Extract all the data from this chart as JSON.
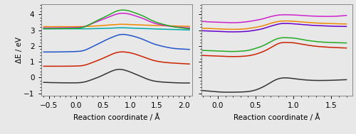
{
  "left": {
    "xlim": [
      -0.65,
      2.15
    ],
    "ylim": [
      -1.15,
      4.65
    ],
    "xticks": [
      -0.5,
      0.0,
      0.5,
      1.0,
      1.5,
      2.0
    ],
    "yticks": [
      -1,
      0,
      1,
      2,
      3,
      4
    ],
    "xlabel": "Reaction coordinate / Å",
    "ylabel": "ΔE / eV"
  },
  "right": {
    "xlim": [
      -0.22,
      1.78
    ],
    "ylim": [
      -1.15,
      4.65
    ],
    "xticks": [
      0.0,
      0.5,
      1.0,
      1.5
    ],
    "yticks": [
      -1,
      0,
      1,
      2,
      3,
      4
    ],
    "xlabel": "Reaction coordinate / Å",
    "ylabel": ""
  },
  "left_lines": {
    "black": {
      "x": [
        -0.6,
        -0.4,
        -0.2,
        0.0,
        0.15,
        0.3,
        0.45,
        0.6,
        0.72,
        0.82,
        0.95,
        1.1,
        1.25,
        1.4,
        1.6,
        1.8,
        2.0,
        2.1
      ],
      "y": [
        -0.3,
        -0.32,
        -0.33,
        -0.33,
        -0.28,
        -0.12,
        0.08,
        0.32,
        0.48,
        0.52,
        0.42,
        0.22,
        0.0,
        -0.18,
        -0.28,
        -0.32,
        -0.34,
        -0.34
      ]
    },
    "red": {
      "x": [
        -0.6,
        -0.4,
        -0.2,
        0.0,
        0.15,
        0.3,
        0.45,
        0.6,
        0.72,
        0.82,
        0.95,
        1.1,
        1.25,
        1.4,
        1.6,
        1.8,
        2.0,
        2.1
      ],
      "y": [
        0.72,
        0.72,
        0.72,
        0.73,
        0.78,
        0.95,
        1.15,
        1.38,
        1.55,
        1.62,
        1.6,
        1.48,
        1.3,
        1.12,
        0.98,
        0.92,
        0.88,
        0.86
      ]
    },
    "blue": {
      "x": [
        -0.6,
        -0.4,
        -0.2,
        0.0,
        0.15,
        0.3,
        0.45,
        0.6,
        0.72,
        0.82,
        0.95,
        1.1,
        1.25,
        1.4,
        1.6,
        1.8,
        2.0,
        2.1
      ],
      "y": [
        1.62,
        1.62,
        1.63,
        1.65,
        1.72,
        1.95,
        2.2,
        2.45,
        2.62,
        2.72,
        2.7,
        2.58,
        2.4,
        2.18,
        1.98,
        1.85,
        1.8,
        1.78
      ]
    },
    "cyan": {
      "x": [
        -0.6,
        -0.4,
        -0.2,
        0.0,
        0.15,
        0.3,
        0.45,
        0.6,
        0.72,
        0.82,
        0.95,
        1.1,
        1.25,
        1.4,
        1.6,
        1.8,
        2.0,
        2.1
      ],
      "y": [
        3.08,
        3.08,
        3.08,
        3.08,
        3.08,
        3.09,
        3.1,
        3.12,
        3.14,
        3.15,
        3.14,
        3.12,
        3.1,
        3.08,
        3.06,
        3.04,
        3.02,
        3.01
      ]
    },
    "orange": {
      "x": [
        -0.6,
        -0.4,
        -0.2,
        0.0,
        0.15,
        0.3,
        0.45,
        0.6,
        0.72,
        0.82,
        0.95,
        1.1,
        1.25,
        1.4,
        1.6,
        1.8,
        2.0,
        2.1
      ],
      "y": [
        3.22,
        3.22,
        3.22,
        3.22,
        3.23,
        3.25,
        3.28,
        3.32,
        3.35,
        3.37,
        3.36,
        3.34,
        3.32,
        3.3,
        3.28,
        3.26,
        3.25,
        3.24
      ]
    },
    "magenta": {
      "x": [
        -0.6,
        -0.4,
        -0.2,
        0.0,
        0.15,
        0.3,
        0.45,
        0.6,
        0.72,
        0.82,
        0.95,
        1.1,
        1.25,
        1.4,
        1.6,
        1.8,
        2.0,
        2.1
      ],
      "y": [
        3.14,
        3.14,
        3.15,
        3.16,
        3.22,
        3.42,
        3.62,
        3.82,
        3.98,
        4.06,
        4.04,
        3.9,
        3.72,
        3.5,
        3.32,
        3.22,
        3.16,
        3.14
      ]
    },
    "green": {
      "x": [
        -0.6,
        -0.4,
        -0.2,
        0.0,
        0.15,
        0.3,
        0.45,
        0.6,
        0.72,
        0.82,
        0.95,
        1.1,
        1.25,
        1.4,
        1.6,
        1.8,
        2.0,
        2.1
      ],
      "y": [
        3.1,
        3.1,
        3.11,
        3.12,
        3.2,
        3.45,
        3.7,
        3.95,
        4.16,
        4.26,
        4.24,
        4.08,
        3.88,
        3.62,
        3.38,
        3.22,
        3.12,
        3.08
      ]
    }
  },
  "left_order": [
    "black",
    "red",
    "blue",
    "cyan",
    "orange",
    "magenta",
    "green"
  ],
  "right_lines": {
    "black": {
      "x": [
        -0.2,
        -0.1,
        0.0,
        0.1,
        0.2,
        0.3,
        0.4,
        0.5,
        0.6,
        0.65,
        0.72,
        0.82,
        0.92,
        1.0,
        1.1,
        1.2,
        1.3,
        1.4,
        1.5,
        1.6,
        1.7
      ],
      "y": [
        -0.82,
        -0.86,
        -0.9,
        -0.92,
        -0.92,
        -0.91,
        -0.88,
        -0.78,
        -0.58,
        -0.45,
        -0.25,
        -0.05,
        -0.02,
        -0.06,
        -0.12,
        -0.16,
        -0.18,
        -0.18,
        -0.17,
        -0.15,
        -0.13
      ]
    },
    "red": {
      "x": [
        -0.2,
        -0.1,
        0.0,
        0.1,
        0.2,
        0.3,
        0.4,
        0.5,
        0.6,
        0.65,
        0.72,
        0.82,
        0.92,
        1.0,
        1.1,
        1.2,
        1.3,
        1.4,
        1.5,
        1.6,
        1.7
      ],
      "y": [
        1.4,
        1.38,
        1.36,
        1.34,
        1.33,
        1.34,
        1.38,
        1.48,
        1.65,
        1.76,
        1.95,
        2.18,
        2.22,
        2.2,
        2.12,
        2.04,
        1.98,
        1.94,
        1.91,
        1.89,
        1.87
      ]
    },
    "green": {
      "x": [
        -0.2,
        -0.1,
        0.0,
        0.1,
        0.2,
        0.3,
        0.4,
        0.5,
        0.6,
        0.65,
        0.72,
        0.82,
        0.92,
        1.0,
        1.1,
        1.2,
        1.3,
        1.4,
        1.5,
        1.6,
        1.7
      ],
      "y": [
        1.72,
        1.7,
        1.68,
        1.66,
        1.65,
        1.67,
        1.72,
        1.85,
        2.02,
        2.14,
        2.32,
        2.5,
        2.52,
        2.5,
        2.42,
        2.34,
        2.28,
        2.24,
        2.22,
        2.2,
        2.19
      ]
    },
    "purple": {
      "x": [
        -0.2,
        -0.1,
        0.0,
        0.1,
        0.2,
        0.3,
        0.4,
        0.5,
        0.6,
        0.65,
        0.72,
        0.82,
        0.92,
        1.0,
        1.1,
        1.2,
        1.3,
        1.4,
        1.5,
        1.6,
        1.7
      ],
      "y": [
        2.96,
        2.94,
        2.92,
        2.9,
        2.89,
        2.9,
        2.93,
        3.0,
        3.1,
        3.18,
        3.28,
        3.4,
        3.42,
        3.4,
        3.36,
        3.32,
        3.29,
        3.27,
        3.25,
        3.24,
        3.23
      ]
    },
    "orange": {
      "x": [
        -0.2,
        -0.1,
        0.0,
        0.1,
        0.2,
        0.3,
        0.4,
        0.5,
        0.6,
        0.65,
        0.72,
        0.82,
        0.92,
        1.0,
        1.1,
        1.2,
        1.3,
        1.4,
        1.5,
        1.6,
        1.7
      ],
      "y": [
        3.12,
        3.1,
        3.08,
        3.06,
        3.05,
        3.06,
        3.1,
        3.18,
        3.28,
        3.36,
        3.46,
        3.56,
        3.58,
        3.56,
        3.52,
        3.48,
        3.45,
        3.43,
        3.41,
        3.4,
        3.39
      ]
    },
    "magenta": {
      "x": [
        -0.2,
        -0.1,
        0.0,
        0.1,
        0.2,
        0.3,
        0.4,
        0.5,
        0.6,
        0.65,
        0.72,
        0.82,
        0.92,
        1.0,
        1.1,
        1.2,
        1.3,
        1.4,
        1.5,
        1.6,
        1.7
      ],
      "y": [
        3.55,
        3.52,
        3.5,
        3.48,
        3.47,
        3.49,
        3.54,
        3.62,
        3.72,
        3.79,
        3.88,
        3.96,
        3.97,
        3.96,
        3.93,
        3.9,
        3.88,
        3.87,
        3.87,
        3.89,
        3.93
      ]
    }
  },
  "right_order": [
    "black",
    "red",
    "green",
    "purple",
    "orange",
    "magenta"
  ],
  "colors": {
    "black": "#333333",
    "red": "#cc2200",
    "blue": "#2255cc",
    "cyan": "#00aaaa",
    "magenta": "#cc22cc",
    "orange": "#ee8800",
    "green": "#22aa22",
    "purple": "#6600cc"
  },
  "bg_color": "#e8e8e8",
  "linewidth": 1.1,
  "fontsize": 7.5,
  "tick_direction": "out"
}
